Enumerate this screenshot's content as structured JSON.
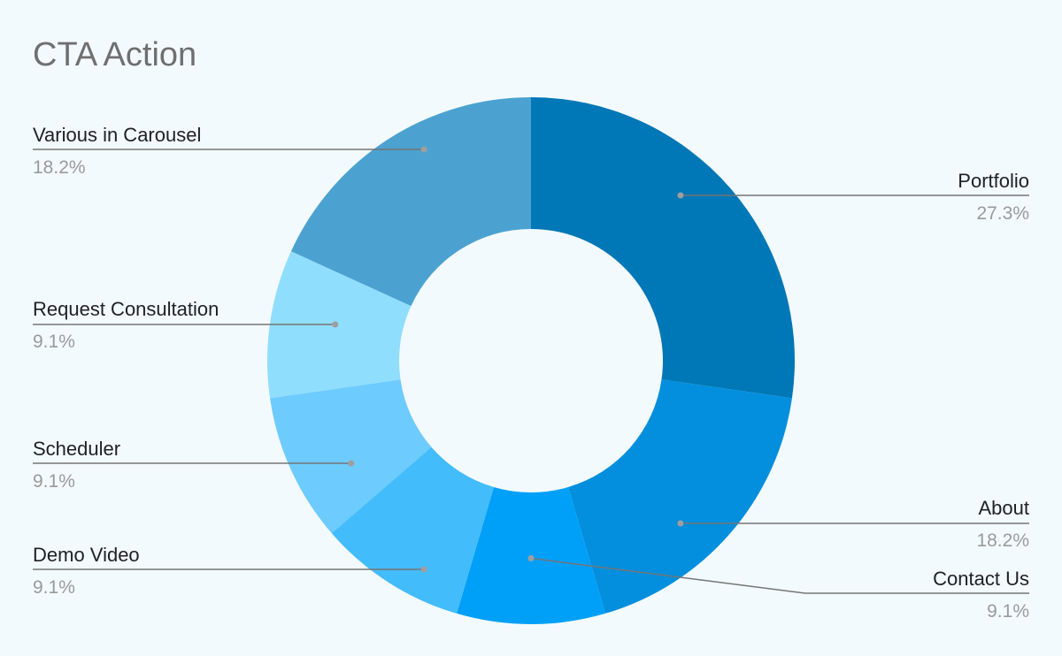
{
  "chart_data": {
    "type": "pie",
    "style": "donut",
    "title": "CTA Action",
    "slices": [
      {
        "label": "Portfolio",
        "value": 27.3,
        "value_label": "27.3%",
        "color": "#0077b6"
      },
      {
        "label": "About",
        "value": 18.2,
        "value_label": "18.2%",
        "color": "#038fdd"
      },
      {
        "label": "Contact Us",
        "value": 9.1,
        "value_label": "9.1%",
        "color": "#01a0f8"
      },
      {
        "label": "Demo Video",
        "value": 9.1,
        "value_label": "9.1%",
        "color": "#43bcfb"
      },
      {
        "label": "Scheduler",
        "value": 9.1,
        "value_label": "9.1%",
        "color": "#6ecbfd"
      },
      {
        "label": "Request Consultation",
        "value": 9.1,
        "value_label": "9.1%",
        "color": "#8fdefe"
      },
      {
        "label": "Various in Carousel",
        "value": 18.2,
        "value_label": "18.2%",
        "color": "#4ba2d0"
      }
    ],
    "legend": "none",
    "labels": "outside-with-leaders"
  }
}
